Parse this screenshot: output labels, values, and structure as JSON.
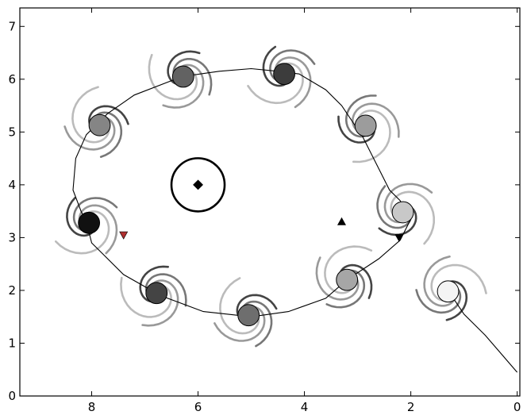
{
  "chart_data": {
    "type": "scatter",
    "title": "",
    "xlabel": "",
    "ylabel": "",
    "xlim": [
      9.35,
      -0.05
    ],
    "ylim": [
      0,
      7.35
    ],
    "x_inverted": true,
    "grid": false,
    "xticks": [
      8,
      6,
      4,
      2,
      0
    ],
    "xtick_labels": [
      "8",
      "6",
      "4",
      "2",
      "0"
    ],
    "yticks": [
      0,
      1,
      2,
      3,
      4,
      5,
      6,
      7
    ],
    "ytick_labels": [
      "0",
      "1",
      "2",
      "3",
      "4",
      "5",
      "6",
      "7"
    ],
    "path": {
      "color": "#000000",
      "points": [
        [
          8.1,
          3.3
        ],
        [
          8.0,
          2.9
        ],
        [
          7.8,
          2.7
        ],
        [
          7.4,
          2.3
        ],
        [
          6.7,
          1.9
        ],
        [
          5.9,
          1.6
        ],
        [
          5.0,
          1.5
        ],
        [
          4.3,
          1.6
        ],
        [
          3.6,
          1.85
        ],
        [
          3.2,
          2.2
        ],
        [
          2.6,
          2.6
        ],
        [
          2.2,
          2.95
        ],
        [
          2.0,
          3.35
        ],
        [
          2.2,
          3.7
        ],
        [
          2.4,
          3.9
        ],
        [
          2.6,
          4.3
        ],
        [
          2.9,
          4.9
        ],
        [
          3.3,
          5.5
        ],
        [
          3.6,
          5.8
        ],
        [
          4.1,
          6.1
        ],
        [
          4.5,
          6.15
        ],
        [
          5.0,
          6.2
        ],
        [
          5.6,
          6.15
        ],
        [
          6.3,
          6.05
        ],
        [
          7.2,
          5.7
        ],
        [
          7.7,
          5.35
        ],
        [
          8.1,
          4.95
        ],
        [
          8.3,
          4.5
        ],
        [
          8.35,
          3.9
        ],
        [
          8.2,
          3.5
        ],
        [
          8.1,
          3.3
        ]
      ],
      "tail": [
        [
          1.3,
          2.0
        ],
        [
          1.0,
          1.55
        ],
        [
          0.6,
          1.15
        ],
        [
          0.0,
          0.45
        ]
      ]
    },
    "agents": [
      {
        "x": 8.05,
        "y": 3.28,
        "fill": "#111111",
        "radius": 0.2
      },
      {
        "x": 6.78,
        "y": 1.95,
        "fill": "#444444",
        "radius": 0.2
      },
      {
        "x": 5.05,
        "y": 1.53,
        "fill": "#6e6e6e",
        "radius": 0.2
      },
      {
        "x": 3.2,
        "y": 2.2,
        "fill": "#a6a6a6",
        "radius": 0.2
      },
      {
        "x": 1.3,
        "y": 1.98,
        "fill": "#f4f4f4",
        "radius": 0.2
      },
      {
        "x": 2.15,
        "y": 3.48,
        "fill": "#c8c8c8",
        "radius": 0.2
      },
      {
        "x": 2.85,
        "y": 5.12,
        "fill": "#9c9c9c",
        "radius": 0.2
      },
      {
        "x": 4.38,
        "y": 6.1,
        "fill": "#3c3c3c",
        "radius": 0.2
      },
      {
        "x": 6.28,
        "y": 6.05,
        "fill": "#626262",
        "radius": 0.2
      },
      {
        "x": 7.85,
        "y": 5.13,
        "fill": "#858585",
        "radius": 0.2
      }
    ],
    "obstacle": {
      "x": 6.0,
      "y": 4.0,
      "radius": 0.5
    },
    "markers": [
      {
        "shape": "diamond",
        "x": 6.0,
        "y": 4.0,
        "color": "#000000"
      },
      {
        "shape": "triangle-up",
        "x": 3.3,
        "y": 3.3,
        "color": "#000000"
      },
      {
        "shape": "triangle-down",
        "x": 2.22,
        "y": 3.0,
        "color": "#000000"
      },
      {
        "shape": "triangle-down",
        "x": 7.4,
        "y": 3.05,
        "color": "#b03030"
      }
    ]
  }
}
